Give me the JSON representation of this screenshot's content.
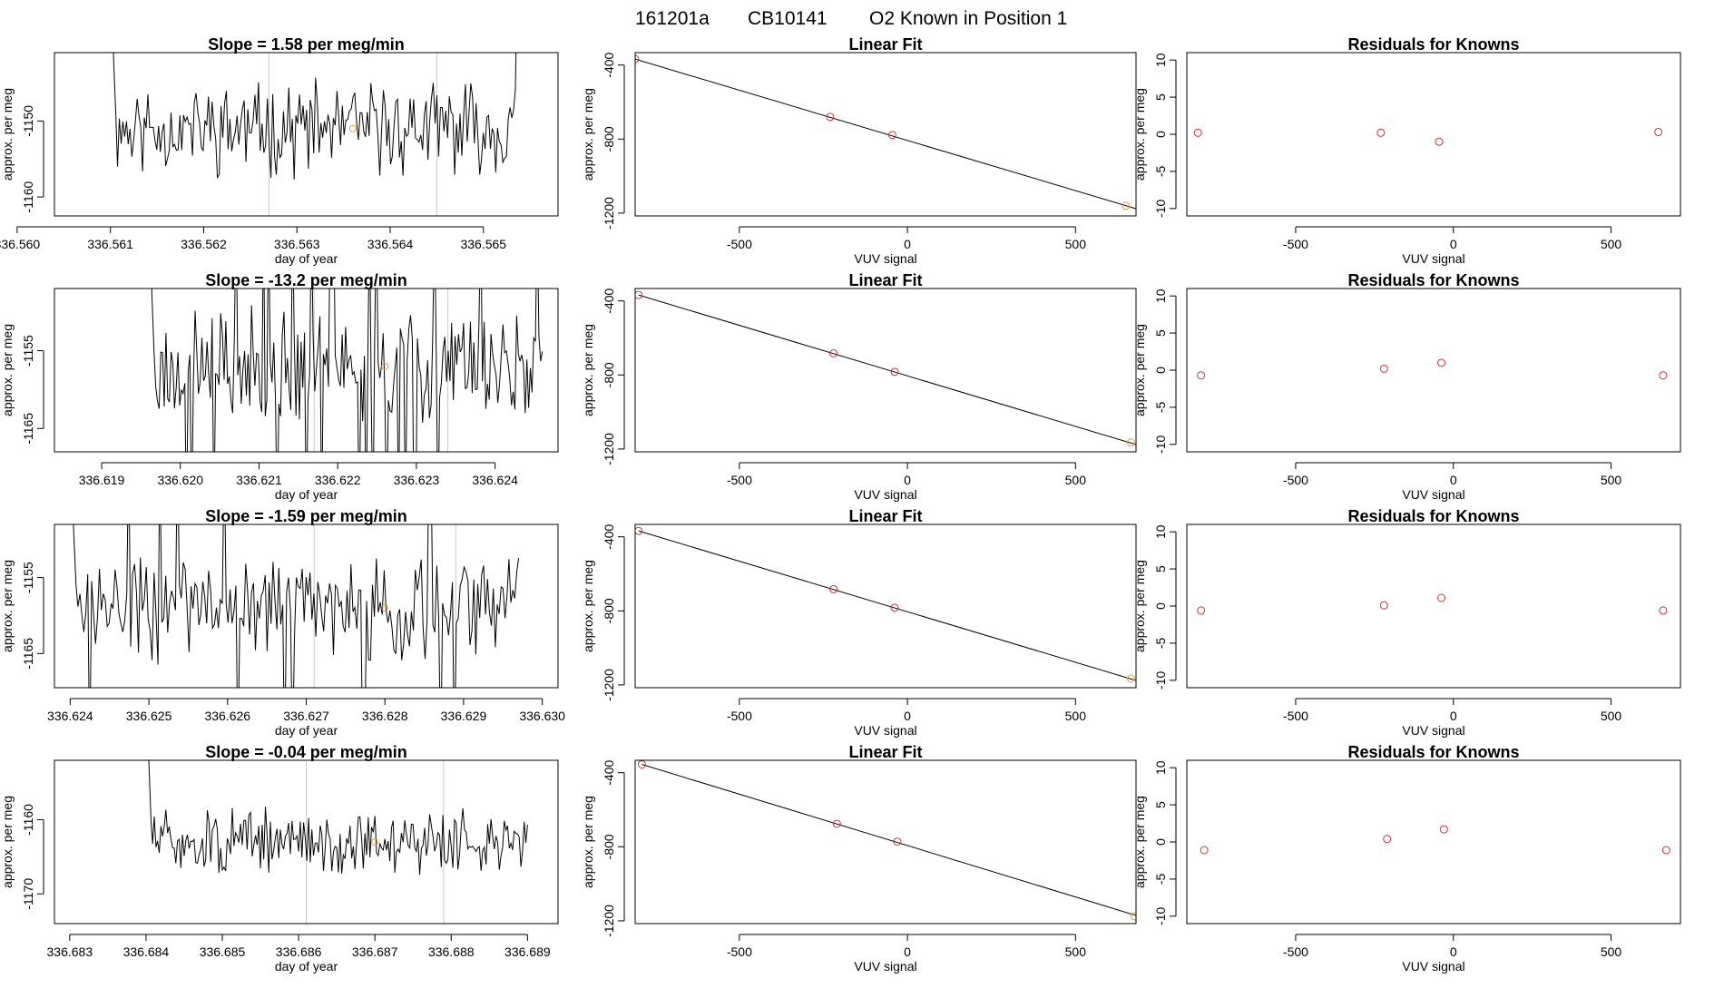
{
  "title": {
    "run_id": "161201a",
    "cylinder": "CB10141",
    "description": "O2 Known in Position  1"
  },
  "labels": {
    "slope_prefix": "Slope = ",
    "slope_suffix": " per meg/min",
    "day_of_year": "day of year",
    "approx_per_meg": "approx. per meg",
    "vuv_signal": "VUV signal",
    "linear_fit": "Linear Fit",
    "residuals": "Residuals for Knowns"
  },
  "colors": {
    "trace": "#000000",
    "known_point": "#e0a040",
    "fit_point": "#cd3333",
    "vline": "#c8c8c8"
  },
  "chart_data": [
    {
      "type": "line",
      "row": 0,
      "slope": "1.58",
      "xlim": [
        336.5604,
        336.5658
      ],
      "ylim": [
        -1162.5,
        -1141
      ],
      "xticks": [
        "336.560",
        "336.561",
        "336.562",
        "336.563",
        "336.564",
        "336.565"
      ],
      "yticks": [
        -1150,
        -1160
      ],
      "vlines": [
        336.5627,
        336.5645
      ],
      "trace_start": 336.561,
      "trace_end": 336.5654,
      "noise": 4.4,
      "mean": -1151,
      "seed": 11,
      "known_point": {
        "x": 336.5636,
        "y": -1151
      }
    },
    {
      "type": "line",
      "row": 1,
      "slope": "-13.2",
      "xlim": [
        336.6184,
        336.6248
      ],
      "ylim": [
        -1168,
        -1147
      ],
      "xticks": [
        "336.619",
        "336.620",
        "336.621",
        "336.622",
        "336.623",
        "336.624"
      ],
      "yticks": [
        -1155,
        -1165
      ],
      "vlines": [
        336.6217,
        336.6234
      ],
      "trace_start": 336.6196,
      "trace_end": 336.6246,
      "noise": 5.2,
      "mean": -1157,
      "seed": 23,
      "known_point": {
        "x": 336.6226,
        "y": -1157
      }
    },
    {
      "type": "line",
      "row": 2,
      "slope": "-1.59",
      "xlim": [
        336.6238,
        336.6302
      ],
      "ylim": [
        -1169.5,
        -1148
      ],
      "xticks": [
        "336.624",
        "336.625",
        "336.626",
        "336.627",
        "336.628",
        "336.629",
        "336.630"
      ],
      "yticks": [
        -1155,
        -1165
      ],
      "vlines": [
        336.6271,
        336.6289
      ],
      "trace_start": 336.624,
      "trace_end": 336.6297,
      "noise": 5.0,
      "mean": -1159,
      "seed": 37,
      "known_point": {
        "x": 336.628,
        "y": -1159
      }
    },
    {
      "type": "line",
      "row": 3,
      "slope": "-0.04",
      "xlim": [
        336.6828,
        336.6894
      ],
      "ylim": [
        -1174,
        -1152
      ],
      "xticks": [
        "336.683",
        "336.684",
        "336.685",
        "336.686",
        "336.687",
        "336.688",
        "336.689"
      ],
      "yticks": [
        -1160,
        -1170
      ],
      "vlines": [
        336.6861,
        336.6879
      ],
      "trace_start": 336.684,
      "trace_end": 336.689,
      "noise": 3.2,
      "mean": -1163,
      "seed": 51,
      "known_point": {
        "x": 336.687,
        "y": -1163
      }
    },
    {
      "type": "scatter",
      "row": 0,
      "xlim": [
        -810,
        680
      ],
      "ylim": [
        -1215,
        -333
      ],
      "xticks": [
        -500,
        0,
        500
      ],
      "yticks": [
        -400,
        -800,
        -1200
      ],
      "points": [
        {
          "x": -810,
          "y": -368
        },
        {
          "x": -230,
          "y": -680
        },
        {
          "x": -45,
          "y": -778
        },
        {
          "x": 650,
          "y": -1160
        }
      ],
      "known_index": 3,
      "fit": {
        "x1": -810,
        "y1": -368,
        "x2": 680,
        "y2": -1176
      }
    },
    {
      "type": "scatter",
      "row": 1,
      "xlim": [
        -810,
        680
      ],
      "ylim": [
        -1215,
        -333
      ],
      "xticks": [
        -500,
        0,
        500
      ],
      "yticks": [
        -400,
        -800,
        -1200
      ],
      "points": [
        {
          "x": -800,
          "y": -368
        },
        {
          "x": -220,
          "y": -683
        },
        {
          "x": -38,
          "y": -783
        },
        {
          "x": 665,
          "y": -1165
        }
      ],
      "known_index": 3,
      "fit": {
        "x1": -800,
        "y1": -368,
        "x2": 680,
        "y2": -1176
      }
    },
    {
      "type": "scatter",
      "row": 2,
      "xlim": [
        -810,
        680
      ],
      "ylim": [
        -1215,
        -333
      ],
      "xticks": [
        -500,
        0,
        500
      ],
      "yticks": [
        -400,
        -800,
        -1200
      ],
      "points": [
        {
          "x": -800,
          "y": -368
        },
        {
          "x": -220,
          "y": -683
        },
        {
          "x": -38,
          "y": -783
        },
        {
          "x": 665,
          "y": -1165
        }
      ],
      "known_index": 3,
      "fit": {
        "x1": -800,
        "y1": -368,
        "x2": 680,
        "y2": -1176
      }
    },
    {
      "type": "scatter",
      "row": 3,
      "xlim": [
        -810,
        680
      ],
      "ylim": [
        -1215,
        -333
      ],
      "xticks": [
        -500,
        0,
        500
      ],
      "yticks": [
        -400,
        -800,
        -1200
      ],
      "points": [
        {
          "x": -790,
          "y": -355
        },
        {
          "x": -210,
          "y": -676
        },
        {
          "x": -30,
          "y": -772
        },
        {
          "x": 675,
          "y": -1175
        }
      ],
      "known_index": 3,
      "fit": {
        "x1": -790,
        "y1": -355,
        "x2": 680,
        "y2": -1171
      }
    },
    {
      "type": "scatter",
      "row": 0,
      "xlim": [
        -845,
        720
      ],
      "ylim": [
        -11,
        11
      ],
      "xticks": [
        -500,
        0,
        500
      ],
      "yticks": [
        10,
        5,
        0,
        -5,
        -10
      ],
      "points": [
        {
          "x": -810,
          "y": 0.2
        },
        {
          "x": -230,
          "y": 0.2
        },
        {
          "x": -45,
          "y": -1.0
        },
        {
          "x": 650,
          "y": 0.3
        }
      ]
    },
    {
      "type": "scatter",
      "row": 1,
      "xlim": [
        -845,
        720
      ],
      "ylim": [
        -11,
        11
      ],
      "xticks": [
        -500,
        0,
        500
      ],
      "yticks": [
        10,
        5,
        0,
        -5,
        -10
      ],
      "points": [
        {
          "x": -800,
          "y": -0.7
        },
        {
          "x": -220,
          "y": 0.2
        },
        {
          "x": -38,
          "y": 1.0
        },
        {
          "x": 665,
          "y": -0.7
        }
      ]
    },
    {
      "type": "scatter",
      "row": 2,
      "xlim": [
        -845,
        720
      ],
      "ylim": [
        -11,
        11
      ],
      "xticks": [
        -500,
        0,
        500
      ],
      "yticks": [
        10,
        5,
        0,
        -5,
        -10
      ],
      "points": [
        {
          "x": -800,
          "y": -0.6
        },
        {
          "x": -220,
          "y": 0.1
        },
        {
          "x": -38,
          "y": 1.1
        },
        {
          "x": 665,
          "y": -0.6
        }
      ]
    },
    {
      "type": "scatter",
      "row": 3,
      "xlim": [
        -845,
        720
      ],
      "ylim": [
        -11,
        11
      ],
      "xticks": [
        -500,
        0,
        500
      ],
      "yticks": [
        10,
        5,
        0,
        -5,
        -10
      ],
      "points": [
        {
          "x": -790,
          "y": -1.1
        },
        {
          "x": -210,
          "y": 0.4
        },
        {
          "x": -30,
          "y": 1.7
        },
        {
          "x": 675,
          "y": -1.1
        }
      ]
    }
  ]
}
